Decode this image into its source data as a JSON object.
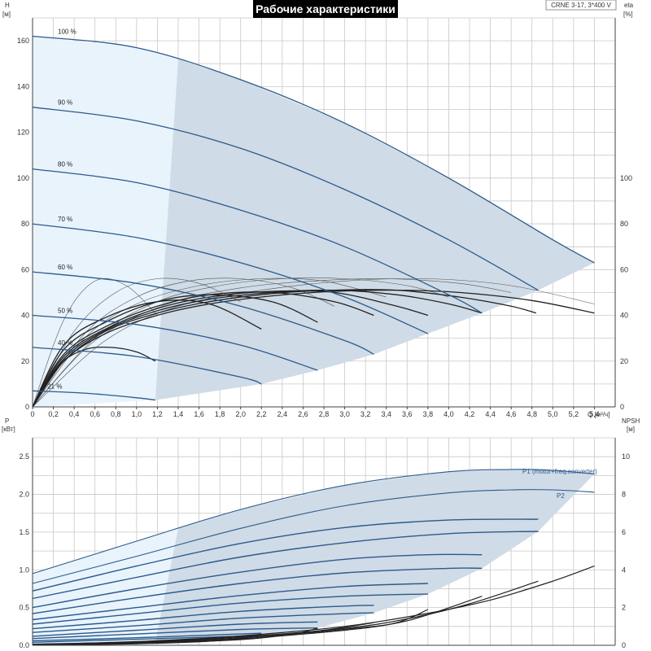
{
  "title": "Рабочие характеристики",
  "model": "CRNE 3-17, 3*400 V",
  "colors": {
    "curve": "#2c5a8c",
    "zone_dark": "#cfdbe6",
    "zone_light": "#e8f3fc",
    "eta_curve": "#222222",
    "grid": "#c8c8c8"
  },
  "chart_data": [
    {
      "type": "line",
      "name": "head",
      "ylabel": "H",
      "yunit": "[м]",
      "y2label": "eta",
      "y2unit": "[%]",
      "xlabel": "Q",
      "xunit": "[м³/ч]",
      "xlim": [
        0,
        5.6
      ],
      "ylim": [
        0,
        170
      ],
      "y2lim": [
        0,
        170
      ],
      "grid": true,
      "xticks": [
        "0",
        "0,2",
        "0,4",
        "0,6",
        "0,8",
        "1,0",
        "1,2",
        "1,4",
        "1,6",
        "1,8",
        "2,0",
        "2,2",
        "2,4",
        "2,6",
        "2,8",
        "3,0",
        "3,2",
        "3,4",
        "3,6",
        "3,8",
        "4,0",
        "4,2",
        "4,4",
        "4,6",
        "4,8",
        "5,0",
        "5,2",
        "5,4"
      ],
      "yticks": [
        "0",
        "20",
        "40",
        "60",
        "80",
        "100",
        "120",
        "140",
        "160"
      ],
      "y2ticks": [
        "0",
        "20",
        "40",
        "60",
        "80",
        "100"
      ],
      "speed_curves": [
        {
          "label": "100 %",
          "x": [
            0,
            1.0,
            2.0,
            3.0,
            4.0,
            5.0,
            5.4
          ],
          "y": [
            162,
            157,
            143,
            124,
            100,
            73,
            63
          ]
        },
        {
          "label": "90 %",
          "x": [
            0,
            1.0,
            2.0,
            3.0,
            4.0,
            4.86
          ],
          "y": [
            131,
            125,
            113,
            95,
            73,
            51
          ]
        },
        {
          "label": "80 %",
          "x": [
            0,
            1.0,
            2.0,
            3.0,
            4.0,
            4.32
          ],
          "y": [
            104,
            98,
            86,
            70,
            49,
            41
          ]
        },
        {
          "label": "70 %",
          "x": [
            0,
            1.0,
            2.0,
            3.0,
            3.8
          ],
          "y": [
            80,
            74,
            63,
            48,
            32
          ]
        },
        {
          "label": "60 %",
          "x": [
            0,
            1.0,
            2.0,
            3.0,
            3.28
          ],
          "y": [
            59,
            54,
            44,
            29,
            23
          ]
        },
        {
          "label": "50 %",
          "x": [
            0,
            1.0,
            2.0,
            2.74
          ],
          "y": [
            40,
            36,
            27,
            16
          ]
        },
        {
          "label": "40 %",
          "x": [
            0,
            1.0,
            2.0,
            2.2
          ],
          "y": [
            26,
            22,
            13,
            10
          ]
        },
        {
          "label": "21 %",
          "x": [
            0,
            0.5,
            1.0,
            1.18
          ],
          "y": [
            7,
            6,
            4,
            3
          ]
        }
      ],
      "efficiency_curves": [
        {
          "x": [
            0,
            0.3,
            0.7,
            1.2,
            1.7,
            2.3,
            2.9,
            3.5,
            4.1,
            4.8,
            5.4
          ],
          "y": [
            0,
            20,
            32,
            40,
            45,
            48.5,
            50.5,
            51,
            50,
            46.5,
            41
          ]
        },
        {
          "x": [
            0,
            0.3,
            0.7,
            1.2,
            1.7,
            2.3,
            2.9,
            3.5,
            4.1,
            4.6,
            4.84
          ],
          "y": [
            0,
            20,
            33,
            41,
            46,
            49.5,
            51,
            51,
            48,
            44,
            41
          ]
        },
        {
          "x": [
            0,
            0.3,
            0.7,
            1.2,
            1.7,
            2.3,
            2.9,
            3.5,
            4.0,
            4.32
          ],
          "y": [
            0,
            21,
            33.5,
            42,
            47,
            50,
            51,
            49,
            45,
            41
          ]
        },
        {
          "x": [
            0,
            0.3,
            0.7,
            1.2,
            1.7,
            2.3,
            2.9,
            3.5,
            3.8
          ],
          "y": [
            0,
            22,
            34,
            43,
            48,
            50.5,
            50,
            44,
            40
          ]
        },
        {
          "x": [
            0,
            0.3,
            0.7,
            1.2,
            1.7,
            2.3,
            2.9,
            3.28
          ],
          "y": [
            0,
            23,
            35,
            44,
            49,
            50,
            46,
            40
          ]
        },
        {
          "x": [
            0,
            0.3,
            0.7,
            1.2,
            1.7,
            2.3,
            2.74
          ],
          "y": [
            0,
            25,
            37,
            46,
            49,
            46,
            37
          ]
        },
        {
          "x": [
            0,
            0.3,
            0.7,
            1.2,
            1.7,
            2.2
          ],
          "y": [
            0,
            27,
            39,
            46,
            45,
            34
          ]
        },
        {
          "x": [
            0,
            0.25,
            0.5,
            0.75,
            1.0,
            1.18
          ],
          "y": [
            0,
            18,
            25,
            26,
            24,
            20
          ]
        }
      ],
      "efficiency_max_curves": [
        {
          "x": [
            0,
            0.3,
            0.6,
            0.9,
            1.2
          ],
          "y": [
            0,
            38,
            55,
            53,
            40
          ]
        },
        {
          "x": [
            0,
            0.4,
            0.8,
            1.2,
            1.6,
            2.0
          ],
          "y": [
            0,
            33,
            50,
            56,
            54,
            46
          ]
        },
        {
          "x": [
            0,
            0.5,
            1.0,
            1.5,
            2.0,
            2.5,
            2.9
          ],
          "y": [
            0,
            32,
            48,
            55,
            56,
            52,
            44
          ]
        },
        {
          "x": [
            0,
            0.5,
            1.0,
            1.6,
            2.2,
            2.8,
            3.4
          ],
          "y": [
            0,
            30,
            45,
            53,
            56,
            55,
            48
          ]
        },
        {
          "x": [
            0,
            0.6,
            1.2,
            1.8,
            2.4,
            3.0,
            3.6,
            4.0
          ],
          "y": [
            0,
            30,
            46,
            53,
            56,
            56,
            53,
            48
          ]
        },
        {
          "x": [
            0,
            0.6,
            1.3,
            2.0,
            2.7,
            3.4,
            4.1,
            4.6
          ],
          "y": [
            0,
            29,
            45,
            52,
            55,
            56,
            54,
            50
          ]
        },
        {
          "x": [
            0,
            0.7,
            1.4,
            2.2,
            3.0,
            3.8,
            4.6,
            5.4
          ],
          "y": [
            0,
            29,
            44,
            51,
            55,
            56,
            53,
            45
          ]
        }
      ],
      "zone_dark": {
        "x": [
          1.4,
          2.0,
          3.0,
          4.0,
          5.0,
          5.4,
          4.86,
          4.32,
          3.8,
          3.28,
          2.74,
          2.2,
          1.18
        ],
        "y": [
          152,
          143,
          124,
          100,
          73,
          63,
          51,
          41,
          32,
          23,
          16,
          10,
          3
        ]
      }
    },
    {
      "type": "line",
      "name": "power",
      "ylabel": "P",
      "yunit": "[кВт]",
      "y2label": "NPSH",
      "y2unit": "[м]",
      "xlim": [
        0,
        5.6
      ],
      "ylim": [
        0,
        2.75
      ],
      "y2lim": [
        0,
        11
      ],
      "grid": true,
      "yticks": [
        "0.0",
        "0.5",
        "1.0",
        "1.5",
        "2.0",
        "2.5"
      ],
      "y2ticks": [
        "0",
        "2",
        "4",
        "6",
        "8",
        "10"
      ],
      "labels": [
        "P1 (motor+freq.converter)",
        "P2"
      ],
      "power_curves": [
        {
          "x": [
            0,
            1.0,
            2.0,
            3.0,
            4.0,
            4.6,
            5.0,
            5.4
          ],
          "y": [
            0.95,
            1.38,
            1.8,
            2.12,
            2.3,
            2.33,
            2.32,
            2.27
          ]
        },
        {
          "x": [
            0,
            1.0,
            2.0,
            3.0,
            4.0,
            4.6,
            5.0,
            5.4
          ],
          "y": [
            0.82,
            1.18,
            1.55,
            1.85,
            2.02,
            2.06,
            2.06,
            2.03
          ]
        },
        {
          "x": [
            0,
            1.0,
            2.0,
            3.0,
            4.0,
            4.86
          ],
          "y": [
            0.72,
            1.05,
            1.35,
            1.56,
            1.66,
            1.67
          ]
        },
        {
          "x": [
            0,
            1.0,
            2.0,
            3.0,
            4.0,
            4.86
          ],
          "y": [
            0.62,
            0.9,
            1.17,
            1.36,
            1.48,
            1.51
          ]
        },
        {
          "x": [
            0,
            1.0,
            2.0,
            3.0,
            3.8,
            4.32
          ],
          "y": [
            0.5,
            0.75,
            0.97,
            1.14,
            1.2,
            1.2
          ]
        },
        {
          "x": [
            0,
            1.0,
            2.0,
            3.0,
            4.0,
            4.32
          ],
          "y": [
            0.42,
            0.63,
            0.82,
            0.96,
            1.02,
            1.02
          ]
        },
        {
          "x": [
            0,
            1.0,
            2.0,
            3.0,
            3.8
          ],
          "y": [
            0.34,
            0.5,
            0.66,
            0.78,
            0.82
          ]
        },
        {
          "x": [
            0,
            1.0,
            2.0,
            3.0,
            3.8
          ],
          "y": [
            0.28,
            0.42,
            0.56,
            0.65,
            0.68
          ]
        },
        {
          "x": [
            0,
            1.0,
            2.0,
            3.0,
            3.28
          ],
          "y": [
            0.22,
            0.33,
            0.45,
            0.52,
            0.53
          ]
        },
        {
          "x": [
            0,
            1.0,
            2.0,
            3.0,
            3.28
          ],
          "y": [
            0.17,
            0.26,
            0.36,
            0.42,
            0.43
          ]
        },
        {
          "x": [
            0,
            1.0,
            2.0,
            2.74
          ],
          "y": [
            0.12,
            0.2,
            0.28,
            0.31
          ]
        },
        {
          "x": [
            0,
            1.0,
            2.0,
            2.74
          ],
          "y": [
            0.09,
            0.15,
            0.21,
            0.23
          ]
        },
        {
          "x": [
            0,
            1.0,
            2.0,
            2.2
          ],
          "y": [
            0.06,
            0.1,
            0.15,
            0.16
          ]
        },
        {
          "x": [
            0,
            1.0,
            2.0,
            2.2
          ],
          "y": [
            0.04,
            0.08,
            0.12,
            0.13
          ]
        },
        {
          "x": [
            0,
            0.6,
            1.18
          ],
          "y": [
            0.015,
            0.03,
            0.05
          ]
        },
        {
          "x": [
            0,
            0.6,
            1.18
          ],
          "y": [
            0.01,
            0.02,
            0.035
          ]
        }
      ],
      "npsh_curves": [
        {
          "x": [
            0,
            1.0,
            2.0,
            3.0,
            3.8,
            4.4,
            5.0,
            5.4
          ],
          "y": [
            0.05,
            0.2,
            0.5,
            1.0,
            1.7,
            2.4,
            3.4,
            4.2
          ]
        },
        {
          "x": [
            0,
            1.0,
            2.0,
            3.0,
            3.6,
            4.2,
            4.86
          ],
          "y": [
            0.04,
            0.18,
            0.45,
            0.9,
            1.4,
            2.2,
            3.4
          ]
        },
        {
          "x": [
            0,
            1.0,
            2.0,
            3.0,
            3.6,
            4.32
          ],
          "y": [
            0.04,
            0.16,
            0.4,
            0.85,
            1.3,
            2.6
          ]
        },
        {
          "x": [
            0,
            1.0,
            2.0,
            3.0,
            3.5,
            3.8
          ],
          "y": [
            0.03,
            0.14,
            0.35,
            0.8,
            1.2,
            1.9
          ]
        },
        {
          "x": [
            0,
            1.0,
            2.0,
            2.8,
            3.28
          ],
          "y": [
            0.03,
            0.12,
            0.32,
            0.8,
            1.2
          ]
        },
        {
          "x": [
            0,
            1.0,
            2.0,
            2.5,
            2.74
          ],
          "y": [
            0.02,
            0.1,
            0.3,
            0.6,
            0.9
          ]
        },
        {
          "x": [
            0,
            1.0,
            1.8,
            2.2
          ],
          "y": [
            0.02,
            0.08,
            0.25,
            0.55
          ]
        }
      ],
      "zone_dark": {
        "x": [
          1.4,
          2.0,
          3.0,
          4.0,
          4.6,
          5.0,
          5.4,
          4.86,
          4.32,
          3.8,
          3.28,
          2.74,
          2.2,
          1.18
        ],
        "y": [
          1.55,
          1.8,
          2.12,
          2.3,
          2.33,
          2.32,
          2.27,
          1.51,
          1.02,
          0.68,
          0.43,
          0.23,
          0.13,
          0.035
        ]
      }
    }
  ]
}
